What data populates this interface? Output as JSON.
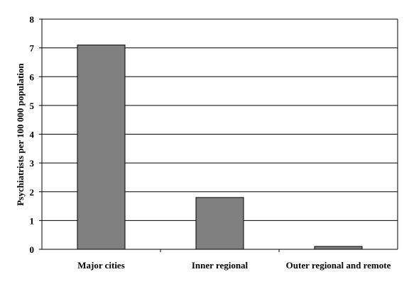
{
  "chart_data": {
    "type": "bar",
    "title": "",
    "xlabel": "",
    "ylabel": "Psychiatrists per 100 000 population",
    "categories": [
      "Major cities",
      "Inner regional",
      "Outer regional and remote"
    ],
    "values": [
      7.1,
      1.8,
      0.1
    ],
    "ylim": [
      0,
      8
    ],
    "yticks": [
      0,
      1,
      2,
      3,
      4,
      5,
      6,
      7,
      8
    ],
    "grid": true,
    "legend": "none",
    "bar_color": "#808080"
  }
}
